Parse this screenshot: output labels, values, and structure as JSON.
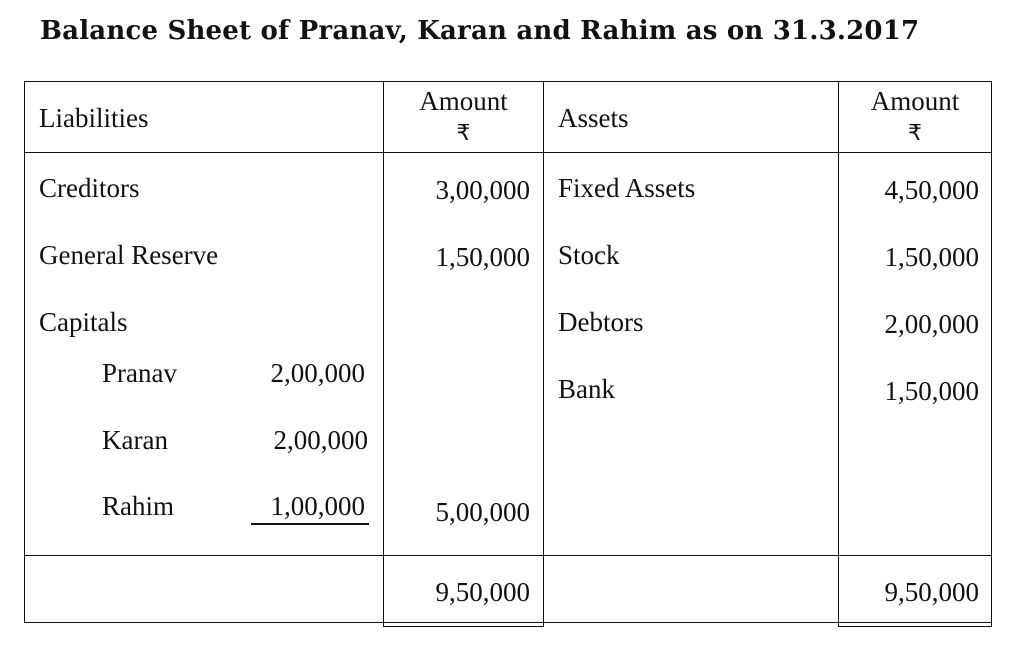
{
  "title": "Balance Sheet of Pranav, Karan and Rahim as on 31.3.2017",
  "header": {
    "liabilities": "Liabilities",
    "amount": "Amount",
    "currency": "₹",
    "assets": "Assets"
  },
  "liabilities": {
    "creditors": {
      "label": "Creditors",
      "amount": "3,00,000"
    },
    "general_reserve": {
      "label": "General Reserve",
      "amount": "1,50,000"
    },
    "capitals": {
      "label": "Capitals",
      "partners": [
        {
          "name": "Pranav",
          "amount": "2,00,000"
        },
        {
          "name": "Karan",
          "amount": "2,00,000"
        },
        {
          "name": "Rahim",
          "amount": "1,00,000"
        }
      ],
      "total": "5,00,000"
    }
  },
  "assets": [
    {
      "label": "Fixed Assets",
      "amount": "4,50,000"
    },
    {
      "label": "Stock",
      "amount": "1,50,000"
    },
    {
      "label": "Debtors",
      "amount": "2,00,000"
    },
    {
      "label": "Bank",
      "amount": "1,50,000"
    }
  ],
  "totals": {
    "liabilities": "9,50,000",
    "assets": "9,50,000"
  }
}
